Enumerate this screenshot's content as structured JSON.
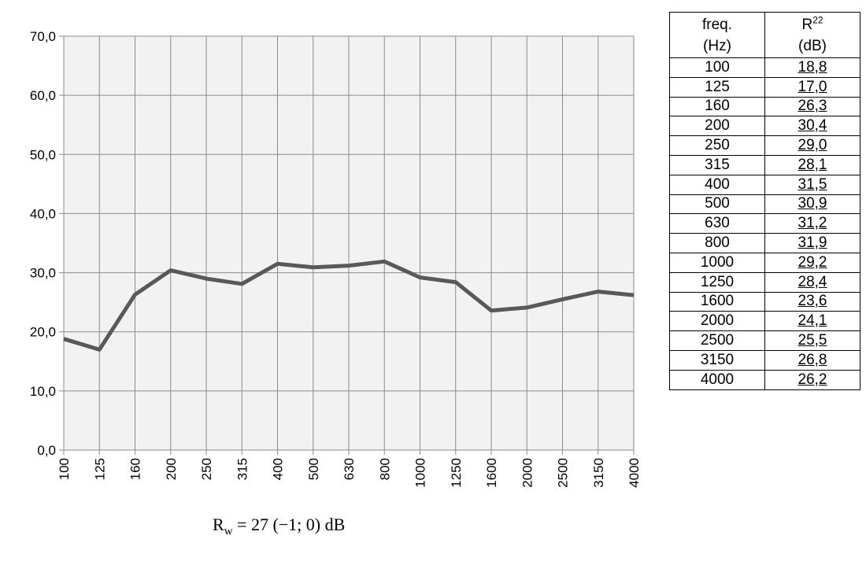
{
  "chart_data": {
    "type": "line",
    "x": [
      "100",
      "125",
      "160",
      "200",
      "250",
      "315",
      "400",
      "500",
      "630",
      "800",
      "1000",
      "1250",
      "1600",
      "2000",
      "2500",
      "3150",
      "4000"
    ],
    "series": [
      {
        "values": [
          18.8,
          17.0,
          26.3,
          30.4,
          29.0,
          28.1,
          31.5,
          30.9,
          31.2,
          31.9,
          29.2,
          28.4,
          23.6,
          24.1,
          25.5,
          26.8,
          26.2
        ]
      }
    ],
    "ylim": [
      0,
      70
    ],
    "yticks": [
      "0,0",
      "10,0",
      "20,0",
      "30,0",
      "40,0",
      "50,0",
      "60,0",
      "70,0"
    ],
    "grid": true,
    "line_color": "#595959",
    "plot_background": "#f2f2f2",
    "grid_color": "#8c8c8c"
  },
  "rating": {
    "symbol": "R",
    "subscript": "w",
    "text": " =   27 (−1; 0) dB"
  },
  "table": {
    "headers": [
      {
        "line1": "freq.",
        "line2": "(Hz)"
      },
      {
        "line1": "R",
        "sup": "22",
        "line2": "(dB)"
      }
    ],
    "rows": [
      [
        "100",
        "18,8"
      ],
      [
        "125",
        "17,0"
      ],
      [
        "160",
        "26,3"
      ],
      [
        "200",
        "30,4"
      ],
      [
        "250",
        "29,0"
      ],
      [
        "315",
        "28,1"
      ],
      [
        "400",
        "31,5"
      ],
      [
        "500",
        "30,9"
      ],
      [
        "630",
        "31,2"
      ],
      [
        "800",
        "31,9"
      ],
      [
        "1000",
        "29,2"
      ],
      [
        "1250",
        "28,4"
      ],
      [
        "1600",
        "23,6"
      ],
      [
        "2000",
        "24,1"
      ],
      [
        "2500",
        "25,5"
      ],
      [
        "3150",
        "26,8"
      ],
      [
        "4000",
        "26,2"
      ]
    ]
  }
}
